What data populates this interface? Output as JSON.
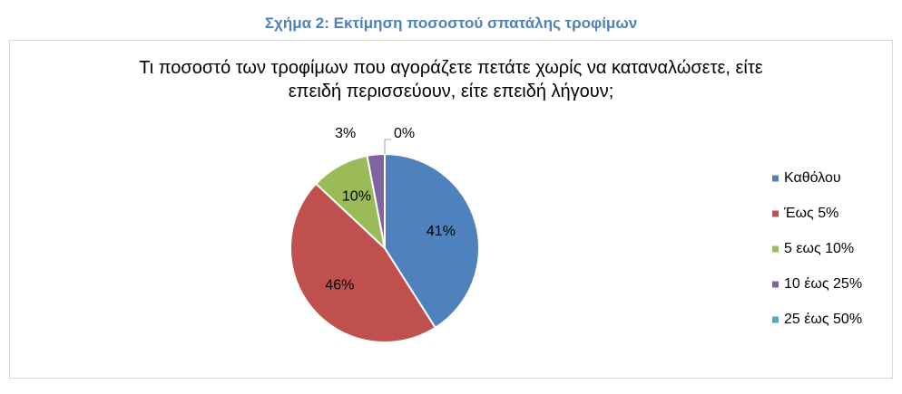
{
  "caption": "Σχήμα 2: Εκτίμηση ποσοστού σπατάλης τροφίμων",
  "chart_data": {
    "type": "pie",
    "title": [
      "Τι ποσοστό των τροφίμων που αγοράζετε πετάτε χωρίς να καταναλώσετε, είτε",
      "επειδή περισσεύουν, είτε επειδή λήγουν;"
    ],
    "categories": [
      "Καθόλου",
      "Έως 5%",
      "5 εως 10%",
      "10 έως 25%",
      "25 έως 50%"
    ],
    "values": [
      41,
      46,
      10,
      3,
      0
    ],
    "value_labels": [
      "41%",
      "46%",
      "10%",
      "3%",
      "0%"
    ],
    "colors": [
      "#4f81bd",
      "#c0504d",
      "#9bbb59",
      "#8064a2",
      "#4bacc6"
    ],
    "legend": "right"
  }
}
